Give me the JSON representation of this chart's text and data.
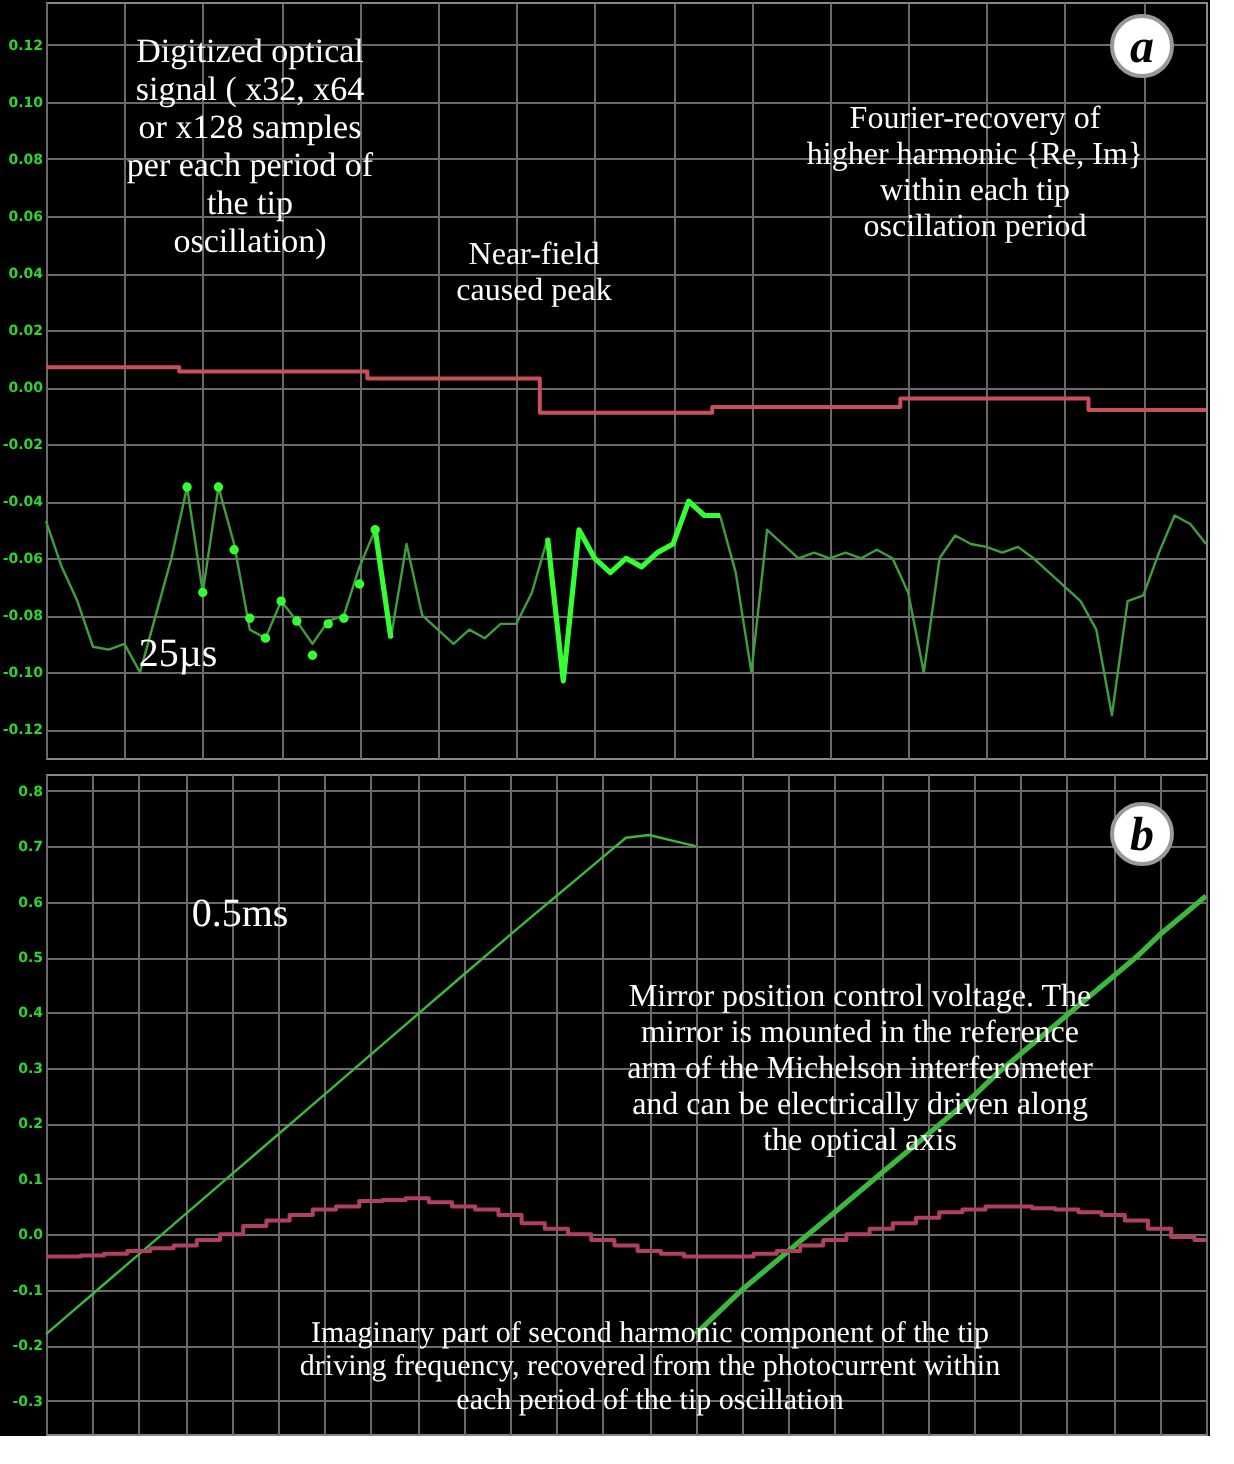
{
  "chart_data": [
    {
      "type": "line",
      "categories": [
        null,
        null,
        null,
        null,
        null,
        null,
        null,
        null,
        null,
        null,
        null,
        null,
        null,
        null,
        null,
        null,
        null,
        null,
        null,
        null,
        null,
        null,
        null,
        null,
        null,
        null,
        null,
        null,
        null,
        null,
        null,
        null,
        null,
        null,
        null,
        null,
        null,
        null,
        null,
        null,
        null,
        null,
        null,
        null,
        null,
        null,
        null,
        null,
        null,
        null,
        null,
        null,
        null,
        null,
        null,
        null,
        null,
        null,
        null,
        null,
        null,
        null,
        null,
        null,
        null,
        null,
        null,
        null,
        null,
        null,
        null,
        null,
        null,
        null,
        null
      ],
      "series": [
        {
          "color": "#3f9f3f",
          "values": [
            -0.047,
            -0.063,
            -0.075,
            -0.091,
            -0.092,
            -0.09,
            -0.1,
            -0.08,
            -0.06,
            -0.035,
            -0.072,
            -0.035,
            -0.055,
            -0.085,
            -0.088,
            -0.075,
            -0.082,
            -0.09,
            -0.082,
            -0.08,
            -0.063,
            -0.05,
            -0.088,
            -0.055,
            -0.08,
            -0.085,
            -0.09,
            -0.085,
            -0.088,
            -0.083,
            -0.083,
            -0.072,
            -0.053,
            -0.103,
            -0.05,
            -0.06,
            -0.065,
            -0.06,
            -0.063,
            -0.058,
            -0.055,
            -0.04,
            -0.045,
            -0.045,
            -0.065,
            -0.1,
            -0.05,
            -0.055,
            -0.06,
            -0.058,
            -0.06,
            -0.058,
            -0.06,
            -0.057,
            -0.06,
            -0.072,
            -0.1,
            -0.06,
            -0.052,
            -0.055,
            -0.056,
            -0.058,
            -0.056,
            -0.06,
            -0.065,
            -0.07,
            -0.075,
            -0.085,
            -0.115,
            -0.075,
            -0.073,
            -0.058,
            -0.045,
            -0.048,
            -0.055
          ]
        },
        {
          "color": "#33ff33",
          "values": [
            null,
            null,
            null,
            null,
            null,
            null,
            null,
            null,
            null,
            null,
            null,
            null,
            null,
            null,
            null,
            null,
            null,
            null,
            null,
            null,
            null,
            -0.05,
            -0.088,
            null,
            null,
            null,
            null,
            null,
            null,
            null,
            null,
            null,
            -0.053,
            -0.103,
            -0.05,
            -0.06,
            -0.065,
            -0.06,
            -0.063,
            -0.058,
            -0.055,
            -0.04,
            -0.045,
            -0.045,
            null,
            null,
            null,
            null,
            null,
            null,
            null,
            null,
            null,
            null,
            null,
            null,
            null,
            null,
            null,
            null,
            null,
            null,
            null,
            null,
            null,
            null,
            null,
            null,
            null,
            null,
            null,
            null,
            null,
            null,
            null
          ]
        },
        {
          "type": "scatter",
          "marker": "circle",
          "color": "#33ff33",
          "values": [
            null,
            null,
            null,
            null,
            null,
            null,
            null,
            null,
            null,
            -0.035,
            -0.072,
            -0.035,
            -0.057,
            -0.081,
            -0.088,
            -0.075,
            -0.082,
            -0.094,
            -0.083,
            -0.081,
            -0.069,
            -0.05,
            null,
            null,
            null,
            null,
            null,
            null,
            null,
            null,
            null,
            null,
            null,
            null,
            null,
            null,
            null,
            null,
            null,
            null,
            null,
            null,
            null,
            null,
            null,
            null,
            null,
            null,
            null,
            null,
            null,
            null,
            null,
            null,
            null,
            null,
            null,
            null,
            null,
            null,
            null,
            null,
            null,
            null,
            null,
            null,
            null,
            null,
            null,
            null,
            null,
            null,
            null,
            null,
            null
          ]
        },
        {
          "type": "step",
          "color": "#c8505a",
          "values": [
            0.007,
            0.007,
            0.007,
            0.007,
            0.007,
            0.007,
            0.007,
            0.007,
            0.007,
            0.0055,
            0.0055,
            0.0055,
            0.0055,
            0.0055,
            0.0055,
            0.0055,
            0.0055,
            0.0055,
            0.0055,
            0.0055,
            0.0055,
            0.003,
            0.003,
            0.003,
            0.003,
            0.003,
            0.003,
            0.003,
            0.003,
            0.003,
            0.003,
            0.003,
            -0.009,
            -0.009,
            -0.009,
            -0.009,
            -0.009,
            -0.009,
            -0.009,
            -0.009,
            -0.009,
            -0.009,
            -0.009,
            -0.007,
            -0.007,
            -0.007,
            -0.007,
            -0.007,
            -0.007,
            -0.007,
            -0.007,
            -0.007,
            -0.007,
            -0.007,
            -0.007,
            -0.004,
            -0.004,
            -0.004,
            -0.004,
            -0.004,
            -0.004,
            -0.004,
            -0.004,
            -0.004,
            -0.004,
            -0.004,
            -0.004,
            -0.008,
            -0.008,
            -0.008,
            -0.008,
            -0.008,
            -0.008,
            -0.008,
            -0.008
          ]
        }
      ],
      "ylim": [
        -0.13,
        0.135
      ],
      "yticks": [
        {
          "value": 0.12,
          "label": "0.12"
        },
        {
          "value": 0.1,
          "label": "0.10"
        },
        {
          "value": 0.08,
          "label": "0.08"
        },
        {
          "value": 0.06,
          "label": "0.06"
        },
        {
          "value": 0.04,
          "label": "0.04"
        },
        {
          "value": 0.02,
          "label": "0.02"
        },
        {
          "value": 0,
          "label": "0.00"
        },
        {
          "value": -0.02,
          "label": "-0.02"
        },
        {
          "value": -0.04,
          "label": "-0.04"
        },
        {
          "value": -0.06,
          "label": "-0.06"
        },
        {
          "value": -0.08,
          "label": "-0.08"
        },
        {
          "value": -0.1,
          "label": "-0.10"
        },
        {
          "value": -0.12,
          "label": "-0.12"
        }
      ],
      "grid": true,
      "tick_labels": "y",
      "annotations": [
        "Digitized optical signal ( x32, x64 or x128 samples per each period of the tip oscillation)",
        "Near-field caused peak",
        "Fourier-recovery of higher harmonic {Re, Im} within each tip oscillation period",
        "25µs",
        "a"
      ]
    },
    {
      "type": "line",
      "categories": [
        null,
        null,
        null,
        null,
        null,
        null,
        null,
        null,
        null,
        null,
        null,
        null,
        null,
        null,
        null,
        null,
        null,
        null,
        null,
        null,
        null,
        null,
        null,
        null,
        null,
        null,
        null,
        null,
        null,
        null,
        null,
        null,
        null,
        null,
        null,
        null,
        null,
        null,
        null,
        null,
        null,
        null,
        null,
        null,
        null,
        null,
        null,
        null,
        null,
        null,
        null
      ],
      "series": [
        {
          "color": "#3cb83c",
          "values": [
            -0.18,
            -0.144,
            -0.108,
            -0.072,
            -0.036,
            0.0,
            0.036,
            0.072,
            0.108,
            0.144,
            0.18,
            0.216,
            0.252,
            0.288,
            0.324,
            0.36,
            0.396,
            0.432,
            0.468,
            0.504,
            0.54,
            0.575,
            0.61,
            0.645,
            0.68,
            0.715,
            0.72,
            0.71,
            0.7,
            null,
            null,
            null,
            null,
            null,
            null,
            null,
            null,
            null,
            null,
            null,
            null,
            null,
            null,
            null,
            null,
            null,
            null,
            null,
            null,
            null,
            null
          ]
        },
        {
          "color": "#3cb83c",
          "values": [
            null,
            null,
            null,
            null,
            null,
            null,
            null,
            null,
            null,
            null,
            null,
            null,
            null,
            null,
            null,
            null,
            null,
            null,
            null,
            null,
            null,
            null,
            null,
            null,
            null,
            null,
            null,
            null,
            -0.18,
            -0.14,
            -0.1,
            -0.065,
            -0.03,
            0.005,
            0.04,
            0.075,
            0.11,
            0.145,
            0.18,
            0.215,
            0.25,
            0.29,
            0.325,
            0.36,
            0.395,
            0.43,
            0.465,
            0.5,
            0.54,
            0.575,
            0.61
          ]
        },
        {
          "type": "step",
          "color": "#b04060",
          "values": [
            -0.04,
            -0.04,
            -0.038,
            -0.035,
            -0.03,
            -0.025,
            -0.02,
            -0.01,
            0.0,
            0.015,
            0.025,
            0.035,
            0.045,
            0.05,
            0.06,
            0.062,
            0.065,
            0.058,
            0.05,
            0.045,
            0.035,
            0.02,
            0.01,
            0.0,
            -0.01,
            -0.02,
            -0.03,
            -0.035,
            -0.04,
            -0.04,
            -0.04,
            -0.035,
            -0.03,
            -0.02,
            -0.01,
            0.0,
            0.01,
            0.02,
            0.03,
            0.04,
            0.045,
            0.05,
            0.05,
            0.047,
            0.045,
            0.04,
            0.035,
            0.025,
            0.01,
            -0.005,
            -0.01
          ]
        }
      ],
      "ylim": [
        -0.36,
        0.83
      ],
      "yticks": [
        0.8,
        0.7,
        0.6,
        0.5,
        0.4,
        0.3,
        0.2,
        0.1,
        {
          "value": 0,
          "label": "0.0"
        },
        -0.1,
        -0.2,
        -0.3
      ],
      "grid": true,
      "tick_labels": "y",
      "annotations": [
        "0.5ms",
        "b",
        "Mirror position control voltage. The mirror is mounted in the reference arm of the Michelson interferometer and can be electrically driven along the optical axis",
        "Imaginary part of second harmonic component of the tip driving frequency, recovered from the photocurrent within each period of the tip oscillation"
      ]
    }
  ]
}
